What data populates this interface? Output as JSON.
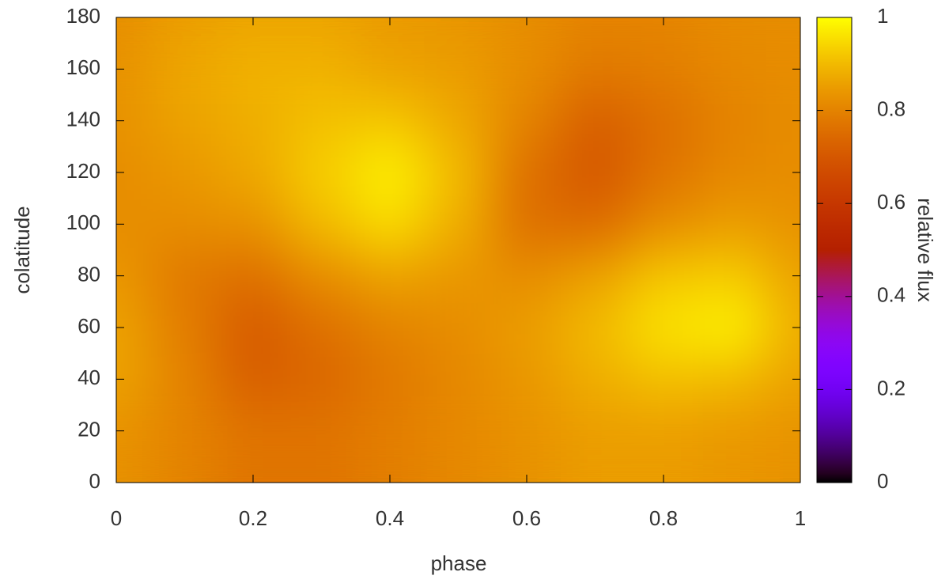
{
  "chart_data": {
    "type": "heatmap",
    "xlabel": "phase",
    "ylabel": "colatitude",
    "colorbar_label": "relative flux",
    "x": [
      0,
      0.1,
      0.2,
      0.3,
      0.4,
      0.5,
      0.6,
      0.7,
      0.8,
      0.9,
      1
    ],
    "y": [
      0,
      20,
      40,
      60,
      80,
      100,
      120,
      140,
      160,
      180
    ],
    "z": [
      [
        0.82,
        0.81,
        0.8,
        0.79,
        0.8,
        0.81,
        0.82,
        0.83,
        0.83,
        0.82,
        0.82
      ],
      [
        0.83,
        0.8,
        0.77,
        0.77,
        0.79,
        0.81,
        0.83,
        0.85,
        0.85,
        0.84,
        0.83
      ],
      [
        0.86,
        0.8,
        0.72,
        0.74,
        0.78,
        0.81,
        0.84,
        0.88,
        0.91,
        0.9,
        0.86
      ],
      [
        0.86,
        0.79,
        0.71,
        0.76,
        0.8,
        0.82,
        0.85,
        0.9,
        0.96,
        0.98,
        0.88
      ],
      [
        0.84,
        0.78,
        0.76,
        0.82,
        0.86,
        0.84,
        0.82,
        0.86,
        0.92,
        0.93,
        0.86
      ],
      [
        0.82,
        0.82,
        0.83,
        0.9,
        0.95,
        0.88,
        0.76,
        0.75,
        0.82,
        0.85,
        0.83
      ],
      [
        0.82,
        0.84,
        0.87,
        0.93,
        0.98,
        0.9,
        0.76,
        0.7,
        0.77,
        0.81,
        0.82
      ],
      [
        0.83,
        0.86,
        0.88,
        0.91,
        0.92,
        0.87,
        0.8,
        0.72,
        0.76,
        0.8,
        0.82
      ],
      [
        0.83,
        0.87,
        0.89,
        0.89,
        0.86,
        0.85,
        0.82,
        0.78,
        0.79,
        0.81,
        0.82
      ],
      [
        0.82,
        0.84,
        0.85,
        0.85,
        0.84,
        0.83,
        0.82,
        0.81,
        0.81,
        0.82,
        0.82
      ]
    ],
    "xlim": [
      0,
      1
    ],
    "xticks": [
      0,
      0.2,
      0.4,
      0.6,
      0.8,
      1
    ],
    "ylim": [
      0,
      180
    ],
    "yticks": [
      0,
      20,
      40,
      60,
      80,
      100,
      120,
      140,
      160,
      180
    ],
    "clim": [
      0,
      1
    ],
    "cticks": [
      0,
      0.2,
      0.4,
      0.6,
      0.8,
      1
    ]
  }
}
